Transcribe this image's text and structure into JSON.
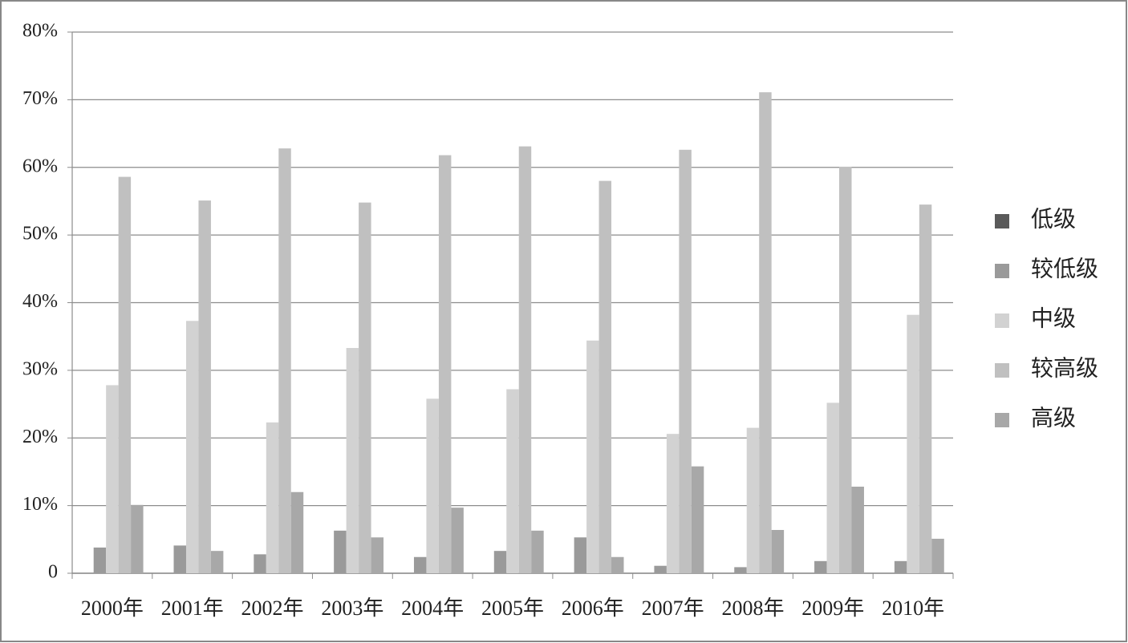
{
  "chart_data": {
    "type": "bar",
    "categories": [
      "2000年",
      "2001年",
      "2002年",
      "2003年",
      "2004年",
      "2005年",
      "2006年",
      "2007年",
      "2008年",
      "2009年",
      "2010年"
    ],
    "series": [
      {
        "name": "低级",
        "color": "#5a5a5a",
        "values": [
          0,
          0,
          0,
          0,
          0,
          0,
          0,
          0,
          0,
          0,
          0
        ]
      },
      {
        "name": "较低级",
        "color": "#9a9a9a",
        "values": [
          3.8,
          4.1,
          2.8,
          6.3,
          2.4,
          3.3,
          5.3,
          1.1,
          0.9,
          1.8,
          1.8
        ]
      },
      {
        "name": "中级",
        "color": "#d2d2d2",
        "values": [
          27.8,
          37.3,
          22.3,
          33.3,
          25.8,
          27.2,
          34.4,
          20.6,
          21.5,
          25.2,
          38.2
        ]
      },
      {
        "name": "较高级",
        "color": "#c0c0c0",
        "values": [
          58.6,
          55.1,
          62.8,
          54.8,
          61.8,
          63.1,
          58.0,
          62.6,
          71.1,
          60.1,
          54.5
        ]
      },
      {
        "name": "高级",
        "color": "#a8a8a8",
        "values": [
          10.1,
          3.3,
          12.0,
          5.3,
          9.7,
          6.3,
          2.4,
          15.8,
          6.4,
          12.8,
          5.1
        ]
      }
    ],
    "ylim": [
      0,
      80
    ],
    "yticks": [
      0,
      {
        "value": 10,
        "label": "10%"
      },
      {
        "value": 20,
        "label": "20%"
      },
      {
        "value": 30,
        "label": "30%"
      },
      {
        "value": 40,
        "label": "40%"
      },
      {
        "value": 50,
        "label": "50%"
      },
      {
        "value": 60,
        "label": "60%"
      },
      {
        "value": 70,
        "label": "70%"
      },
      {
        "value": 80,
        "label": "80%"
      }
    ],
    "grid": true,
    "legend": "right"
  }
}
